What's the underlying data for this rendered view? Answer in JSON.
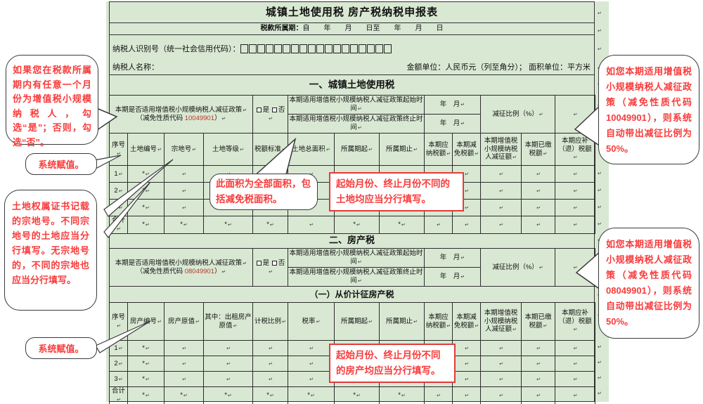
{
  "colors": {
    "form_bg": "#d9e8d3",
    "grid_border": "#2c2c2c",
    "callout_red": "#f93b3b",
    "code_red": "#b3392b",
    "redbox_border": "#e23b3b"
  },
  "marks": {
    "pilcrow": "↵",
    "asterisk": "*"
  },
  "form": {
    "title": "城镇土地使用税 房产税纳税申报表",
    "period_label": "税款所属期：",
    "period_value": "自　　年　　月　　日至　　年　　月　　日",
    "taxpayer_id_label": "纳税人识别号（统一社会信用代码）：",
    "taxpayer_id_box_count": 18,
    "taxpayer_name_label": "纳税人名称：",
    "units_note": "金额单位：人民币元（列至角分）；  面积单位：平方米"
  },
  "section1": {
    "title": "一、城镇土地使用税",
    "policy": {
      "question_line1": "本期是否适用增值税小规模纳税人减征政策",
      "code_prefix": "（减免性质代码 ",
      "code": "10049901",
      "code_suffix": "）",
      "yes_label": "是",
      "no_label": "否",
      "start_label": "本期适用增值税小规模纳税人减征政策起始时间",
      "end_label": "本期适用增值税小规模纳税人减征政策终止时间",
      "year_month": "年　月",
      "ratio_label": "减征比例（%）"
    },
    "columns": [
      "序号",
      "土地编号",
      "宗地号",
      "土地等级",
      "税额标准",
      "土地总面积",
      "所属期起",
      "所属期止",
      "本期应纳税额",
      "本期减免税额",
      "本期增值税小规模纳税人减征额",
      "本期已缴税额",
      "本期应补（退）税额"
    ],
    "rows": [
      [
        "1↵",
        "*↵",
        "↵",
        "↵",
        "↵",
        "↵",
        "↵",
        "↵",
        "↵",
        "↵",
        "↵",
        "↵",
        "↵"
      ],
      [
        "2↵",
        "*↵",
        "↵",
        "↵",
        "↵",
        "↵",
        "↵",
        "↵",
        "↵",
        "↵",
        "↵",
        "↵",
        "↵"
      ],
      [
        "3↵",
        "*↵",
        "↵",
        "↵",
        "↵",
        "↵",
        "↵",
        "↵",
        "↵",
        "↵",
        "↵",
        "↵",
        "↵"
      ],
      [
        "合计↵",
        "*↵",
        "*↵",
        "*↵",
        "*↵",
        "↵",
        "*↵",
        "*↵",
        "↵",
        "↵",
        "↵",
        "↵",
        "↵"
      ]
    ]
  },
  "section2": {
    "title": "二、房产税",
    "subsection": "（一）从价计征房产税",
    "policy": {
      "question_line1": "本期是否适用增值税小规模纳税人减征政策",
      "code_prefix": "（减免性质代码 ",
      "code": "08049901",
      "code_suffix": "）",
      "yes_label": "是",
      "no_label": "否",
      "start_label": "本期适用增值税小规模纳税人减征政策起始时间",
      "end_label": "本期适用增值税小规模纳税人减征政策终止时间",
      "year_month": "年　月",
      "ratio_label": "减征比例（%）"
    },
    "columns": [
      "序号",
      "房产编号",
      "房产原值",
      "其中：出租房产原值",
      "计税比例",
      "税率",
      "所属期起",
      "所属期止",
      "本期应纳税额",
      "本期减免税额",
      "本期增值税小规模纳税人减征额",
      "本期已缴税额",
      "本期应补（退）税额"
    ],
    "rows": [
      [
        "1↵",
        "*↵",
        "↵",
        "↵",
        "↵",
        "↵",
        "↵",
        "↵",
        "↵",
        "↵",
        "↵",
        "↵",
        "↵"
      ],
      [
        "2↵",
        "*↵",
        "↵",
        "↵",
        "↵",
        "↵",
        "↵",
        "↵",
        "↵",
        "↵",
        "↵",
        "↵",
        "↵"
      ],
      [
        "3↵",
        "*↵",
        "↵",
        "↵",
        "↵",
        "↵",
        "↵",
        "↵",
        "↵",
        "↵",
        "↵",
        "↵",
        "↵"
      ],
      [
        "合计↵",
        "*↵",
        "*↵",
        "*↵",
        "*↵",
        "*↵",
        "*↵",
        "*↵",
        "↵",
        "↵",
        "↵",
        "↵",
        "↵"
      ]
    ]
  },
  "callouts": {
    "left_checkbox_tip": "如果您在税款所属期内有任意一个月份为增值税小规模纳税人，勾选“是”；否则，勾选“否”。",
    "system_value_1": "系统赋值。",
    "parcel_tip": "土地权属证书记载的宗地号。不同宗地号的土地应当分行填写。无宗地号的，不同的宗地也应当分行填写。",
    "system_value_2": "系统赋值。",
    "right_ratio_tip_1": "如您本期适用增值税小规模纳税人减征政策（减免性质代码 10049901），则系统自动带出减征比例为 50%。",
    "right_ratio_tip_2": "如您本期适用增值税小规模纳税人减征政策（减免性质代码 08049901），则系统自动带出减征比例为 50%。",
    "area_tip": "此面积为全部面积，包括减免税面积。",
    "land_month_tip": "起始月份、终止月份不同的土地均应当分行填写。",
    "house_month_tip": "起始月份、终止月份不同的房产均应当分行填写。"
  }
}
